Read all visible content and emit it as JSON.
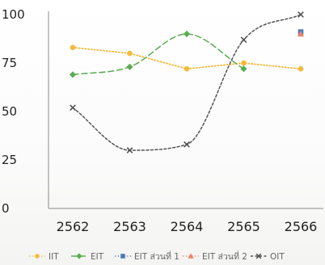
{
  "chart_data": {
    "type": "line",
    "x": [
      "2562",
      "2563",
      "2564",
      "2565",
      "2566"
    ],
    "ylim": [
      0,
      100
    ],
    "yticks": [
      "0",
      "25",
      "50",
      "75",
      "100"
    ],
    "grid": false,
    "legend_position": "bottom",
    "series": [
      {
        "name": "IIT",
        "color": "#f2bb3a",
        "marker": "circle",
        "dash": "dots",
        "connect": "straight",
        "values": [
          83,
          80,
          72,
          75,
          72
        ]
      },
      {
        "name": "EIT",
        "color": "#5aac52",
        "marker": "diamond",
        "dash": "long-dash",
        "connect": "smooth",
        "values": [
          69,
          73,
          90,
          72,
          null
        ]
      },
      {
        "name": "EIT ส่วนที่ 1",
        "color": "#4a78b8",
        "marker": "square",
        "dash": "dots",
        "connect": "straight",
        "values": [
          null,
          null,
          null,
          null,
          91
        ]
      },
      {
        "name": "EIT ส่วนที่ 2",
        "color": "#e8856a",
        "marker": "triangle",
        "dash": "dots",
        "connect": "straight",
        "values": [
          null,
          null,
          null,
          null,
          90
        ]
      },
      {
        "name": "OIT",
        "color": "#555555",
        "marker": "x",
        "dash": "short-dash",
        "connect": "smooth",
        "values": [
          52,
          30,
          33,
          87,
          100
        ]
      }
    ]
  }
}
